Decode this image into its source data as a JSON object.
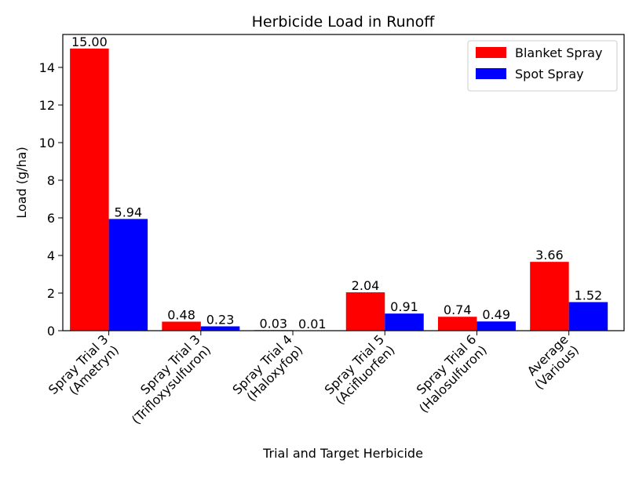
{
  "chart_data": {
    "type": "bar",
    "title": "Herbicide Load in Runoff",
    "xlabel": "Trial and Target Herbicide",
    "ylabel": "Load (g/ha)",
    "categories": [
      [
        "Spray Trial 3",
        "(Ametryn)"
      ],
      [
        "Spray Trial 3",
        "(Trifloxysulfuron)"
      ],
      [
        "Spray Trial 4",
        "(Haloxyfop)"
      ],
      [
        "Spray Trial 5",
        "(Acifluorfen)"
      ],
      [
        "Spray Trial 6",
        "(Halosulfuron)"
      ],
      [
        "Average",
        "(Various)"
      ]
    ],
    "series": [
      {
        "name": "Blanket Spray",
        "color": "#ff0000",
        "values": [
          15.0,
          0.48,
          0.03,
          2.04,
          0.74,
          3.66
        ],
        "labels": [
          "15.00",
          "0.48",
          "0.03",
          "2.04",
          "0.74",
          "3.66"
        ]
      },
      {
        "name": "Spot Spray",
        "color": "#0000ff",
        "values": [
          5.94,
          0.23,
          0.01,
          0.91,
          0.49,
          1.52
        ],
        "labels": [
          "5.94",
          "0.23",
          "0.01",
          "0.91",
          "0.49",
          "1.52"
        ]
      }
    ],
    "ylim": [
      0,
      15.75
    ],
    "yticks": [
      "0",
      "2",
      "4",
      "6",
      "8",
      "10",
      "12",
      "14"
    ],
    "legend": "top-right",
    "grid": false
  }
}
